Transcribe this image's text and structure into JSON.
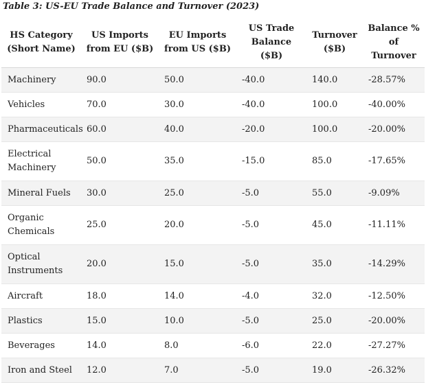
{
  "caption": "Table 3: US-EU Trade Balance and Turnover (2023)",
  "columns": [
    "HS Category (Short Name)",
    "US Imports from EU ($B)",
    "EU Imports from US ($B)",
    "US Trade Balance ($B)",
    "Turnover ($B)",
    "Balance % of Turnover"
  ],
  "rows": [
    [
      "Machinery",
      "90.0",
      "50.0",
      "-40.0",
      "140.0",
      "-28.57%"
    ],
    [
      "Vehicles",
      "70.0",
      "30.0",
      "-40.0",
      "100.0",
      "-40.00%"
    ],
    [
      "Pharmaceuticals",
      "60.0",
      "40.0",
      "-20.0",
      "100.0",
      "-20.00%"
    ],
    [
      "Electrical Machinery",
      "50.0",
      "35.0",
      "-15.0",
      "85.0",
      "-17.65%"
    ],
    [
      "Mineral Fuels",
      "30.0",
      "25.0",
      "-5.0",
      "55.0",
      "-9.09%"
    ],
    [
      "Organic Chemicals",
      "25.0",
      "20.0",
      "-5.0",
      "45.0",
      "-11.11%"
    ],
    [
      "Optical Instruments",
      "20.0",
      "15.0",
      "-5.0",
      "35.0",
      "-14.29%"
    ],
    [
      "Aircraft",
      "18.0",
      "14.0",
      "-4.0",
      "32.0",
      "-12.50%"
    ],
    [
      "Plastics",
      "15.0",
      "10.0",
      "-5.0",
      "25.0",
      "-20.00%"
    ],
    [
      "Beverages",
      "14.0",
      "8.0",
      "-6.0",
      "22.0",
      "-27.27%"
    ],
    [
      "Iron and Steel",
      "12.0",
      "7.0",
      "-5.0",
      "19.0",
      "-26.32%"
    ]
  ]
}
